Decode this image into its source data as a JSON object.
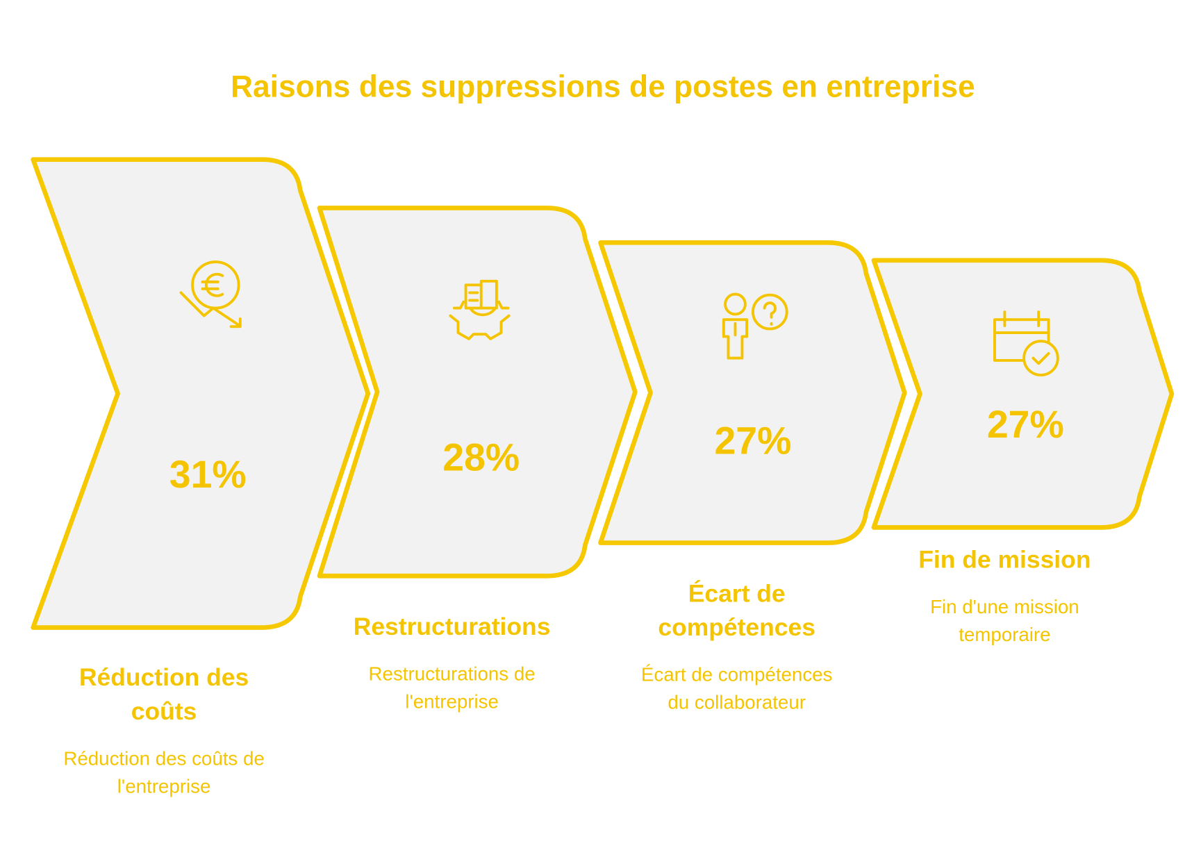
{
  "title": "Raisons des suppressions de postes en entreprise",
  "items": [
    {
      "value": "31%",
      "heading": [
        "Réduction des",
        "coûts"
      ],
      "description": [
        "Réduction des coûts de",
        "l'entreprise"
      ]
    },
    {
      "value": "28%",
      "heading": [
        "Restructurations"
      ],
      "description": [
        "Restructurations de",
        "l'entreprise"
      ]
    },
    {
      "value": "27%",
      "heading": [
        "Écart de",
        "compétences"
      ],
      "description": [
        "Écart de compétences",
        "du collaborateur"
      ]
    },
    {
      "value": "27%",
      "heading": [
        "Fin de mission"
      ],
      "description": [
        "Fin d'une mission",
        "temporaire"
      ]
    }
  ]
}
